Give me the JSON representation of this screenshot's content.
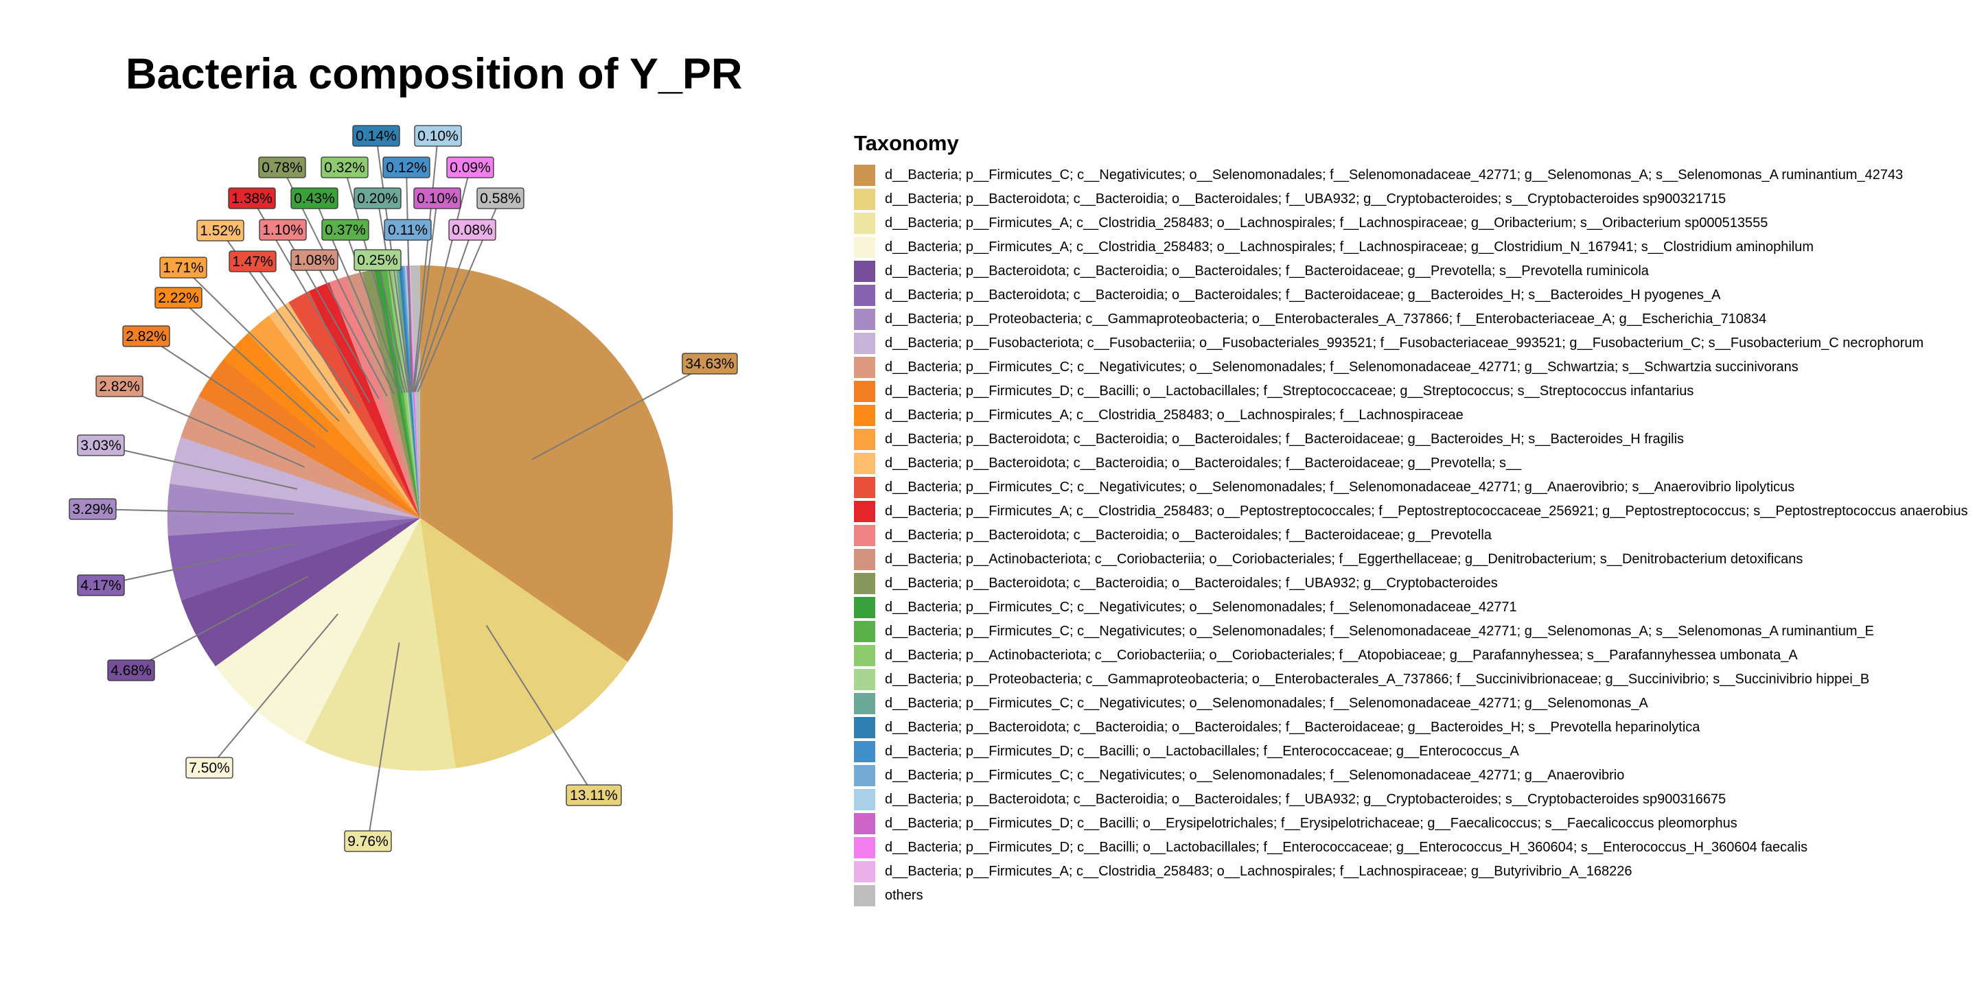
{
  "chart_data": {
    "type": "pie",
    "title": "Bacteria composition of Y_PR",
    "legend_title": "Taxonomy",
    "legend_position": "right",
    "slices": [
      {
        "label": "d__Bacteria; p__Firmicutes_C; c__Negativicutes; o__Selenomonadales; f__Selenomonadaceae_42771; g__Selenomonas_A; s__Selenomonas_A ruminantium_42743",
        "value": 34.63,
        "display": "34.63%",
        "color": "#CD954F"
      },
      {
        "label": "d__Bacteria; p__Bacteroidota; c__Bacteroidia; o__Bacteroidales; f__UBA932; g__Cryptobacteroides; s__Cryptobacteroides sp900321715",
        "value": 13.11,
        "display": "13.11%",
        "color": "#E8D27C"
      },
      {
        "label": "d__Bacteria; p__Firmicutes_A; c__Clostridia_258483; o__Lachnospirales; f__Lachnospiraceae; g__Oribacterium; s__Oribacterium sp000513555",
        "value": 9.76,
        "display": "9.76%",
        "color": "#EDE5A2"
      },
      {
        "label": "d__Bacteria; p__Firmicutes_A; c__Clostridia_258483; o__Lachnospirales; f__Lachnospiraceae; g__Clostridium_N_167941; s__Clostridium aminophilum",
        "value": 7.5,
        "display": "7.50%",
        "color": "#F9F6D8"
      },
      {
        "label": "d__Bacteria; p__Bacteroidota; c__Bacteroidia; o__Bacteroidales; f__Bacteroidaceae; g__Prevotella; s__Prevotella ruminicola",
        "value": 4.68,
        "display": "4.68%",
        "color": "#764E9A"
      },
      {
        "label": "d__Bacteria; p__Bacteroidota; c__Bacteroidia; o__Bacteroidales; f__Bacteroidaceae; g__Bacteroides_H; s__Bacteroides_H pyogenes_A",
        "value": 4.17,
        "display": "4.17%",
        "color": "#8762B0"
      },
      {
        "label": "d__Bacteria; p__Proteobacteria; c__Gammaproteobacteria; o__Enterobacterales_A_737866; f__Enterobacteriaceae_A; g__Escherichia_710834",
        "value": 3.29,
        "display": "3.29%",
        "color": "#A68AC4"
      },
      {
        "label": "d__Bacteria; p__Fusobacteriota; c__Fusobacteriia; o__Fusobacteriales_993521; f__Fusobacteriaceae_993521; g__Fusobacterium_C; s__Fusobacterium_C necrophorum",
        "value": 3.03,
        "display": "3.03%",
        "color": "#C7B3D7"
      },
      {
        "label": "d__Bacteria; p__Firmicutes_C; c__Negativicutes; o__Selenomonadales; f__Selenomonadaceae_42771; g__Schwartzia; s__Schwartzia succinivorans",
        "value": 2.82,
        "display": "2.82%",
        "color": "#DE9A7E"
      },
      {
        "label": "d__Bacteria; p__Firmicutes_D; c__Bacilli; o__Lactobacillales; f__Streptococcaceae; g__Streptococcus; s__Streptococcus infantarius",
        "value": 2.82,
        "display": "2.82%",
        "color": "#F37F24"
      },
      {
        "label": "d__Bacteria; p__Firmicutes_A; c__Clostridia_258483; o__Lachnospirales; f__Lachnospiraceae",
        "value": 2.22,
        "display": "2.22%",
        "color": "#FB8A17"
      },
      {
        "label": "d__Bacteria; p__Bacteroidota; c__Bacteroidia; o__Bacteroidales; f__Bacteroidaceae; g__Bacteroides_H; s__Bacteroides_H fragilis",
        "value": 1.71,
        "display": "1.71%",
        "color": "#FCA23E"
      },
      {
        "label": "d__Bacteria; p__Bacteroidota; c__Bacteroidia; o__Bacteroidales; f__Bacteroidaceae; g__Prevotella; s__",
        "value": 1.52,
        "display": "1.52%",
        "color": "#FDBD6E"
      },
      {
        "label": "d__Bacteria; p__Firmicutes_C; c__Negativicutes; o__Selenomonadales; f__Selenomonadaceae_42771; g__Anaerovibrio; s__Anaerovibrio lipolyticus",
        "value": 1.47,
        "display": "1.47%",
        "color": "#E8503B"
      },
      {
        "label": "d__Bacteria; p__Firmicutes_A; c__Clostridia_258483; o__Peptostreptococcales; f__Peptostreptococcaceae_256921; g__Peptostreptococcus; s__Peptostreptococcus anaerobius",
        "value": 1.38,
        "display": "1.38%",
        "color": "#E3262C"
      },
      {
        "label": "d__Bacteria; p__Bacteroidota; c__Bacteroidia; o__Bacteroidales; f__Bacteroidaceae; g__Prevotella",
        "value": 1.1,
        "display": "1.10%",
        "color": "#F08285"
      },
      {
        "label": "d__Bacteria; p__Actinobacteriota; c__Coriobacteriia; o__Coriobacteriales; f__Eggerthellaceae; g__Denitrobacterium; s__Denitrobacterium detoxificans",
        "value": 1.08,
        "display": "1.08%",
        "color": "#D4937E"
      },
      {
        "label": "d__Bacteria; p__Bacteroidota; c__Bacteroidia; o__Bacteroidales; f__UBA932; g__Cryptobacteroides",
        "value": 0.78,
        "display": "0.78%",
        "color": "#88975C"
      },
      {
        "label": "d__Bacteria; p__Firmicutes_C; c__Negativicutes; o__Selenomonadales; f__Selenomonadaceae_42771",
        "value": 0.43,
        "display": "0.43%",
        "color": "#3AA03A"
      },
      {
        "label": "d__Bacteria; p__Firmicutes_C; c__Negativicutes; o__Selenomonadales; f__Selenomonadaceae_42771; g__Selenomonas_A; s__Selenomonas_A ruminantium_E",
        "value": 0.37,
        "display": "0.37%",
        "color": "#5AB04B"
      },
      {
        "label": "d__Bacteria; p__Actinobacteriota; c__Coriobacteriia; o__Coriobacteriales; f__Atopobiaceae; g__Parafannyhessea; s__Parafannyhessea umbonata_A",
        "value": 0.32,
        "display": "0.32%",
        "color": "#8ECB6E"
      },
      {
        "label": "d__Bacteria; p__Proteobacteria; c__Gammaproteobacteria; o__Enterobacterales_A_737866; f__Succinivibrionaceae; g__Succinivibrio; s__Succinivibrio hippei_B",
        "value": 0.25,
        "display": "0.25%",
        "color": "#A8D690"
      },
      {
        "label": "d__Bacteria; p__Firmicutes_C; c__Negativicutes; o__Selenomonadales; f__Selenomonadaceae_42771; g__Selenomonas_A",
        "value": 0.2,
        "display": "0.20%",
        "color": "#6BA898"
      },
      {
        "label": "d__Bacteria; p__Bacteroidota; c__Bacteroidia; o__Bacteroidales; f__Bacteroidaceae; g__Bacteroides_H; s__Prevotella heparinolytica",
        "value": 0.14,
        "display": "0.14%",
        "color": "#2F7FB0"
      },
      {
        "label": "d__Bacteria; p__Firmicutes_D; c__Bacilli; o__Lactobacillales; f__Enterococcaceae; g__Enterococcus_A",
        "value": 0.12,
        "display": "0.12%",
        "color": "#438FC9"
      },
      {
        "label": "d__Bacteria; p__Firmicutes_C; c__Negativicutes; o__Selenomonadales; f__Selenomonadaceae_42771; g__Anaerovibrio",
        "value": 0.11,
        "display": "0.11%",
        "color": "#74ABD4"
      },
      {
        "label": "d__Bacteria; p__Bacteroidota; c__Bacteroidia; o__Bacteroidales; f__UBA932; g__Cryptobacteroides; s__Cryptobacteroides sp900316675",
        "value": 0.1,
        "display": "0.10%",
        "color": "#A9D0E6"
      },
      {
        "label": "d__Bacteria; p__Firmicutes_D; c__Bacilli; o__Erysipelotrichales; f__Erysipelotrichaceae; g__Faecalicoccus; s__Faecalicoccus pleomorphus",
        "value": 0.1,
        "display": "0.10%",
        "color": "#CD65C8"
      },
      {
        "label": "d__Bacteria; p__Firmicutes_D; c__Bacilli; o__Lactobacillales; f__Enterococcaceae; g__Enterococcus_H_360604; s__Enterococcus_H_360604 faecalis",
        "value": 0.09,
        "display": "0.09%",
        "color": "#F37EEF"
      },
      {
        "label": "d__Bacteria; p__Firmicutes_A; c__Clostridia_258483; o__Lachnospirales; f__Lachnospiraceae; g__Butyrivibrio_A_168226",
        "value": 0.08,
        "display": "0.08%",
        "color": "#EBAFE9"
      },
      {
        "label": "others",
        "value": 0.58,
        "display": "0.58%",
        "color": "#BDBDBD"
      }
    ]
  }
}
